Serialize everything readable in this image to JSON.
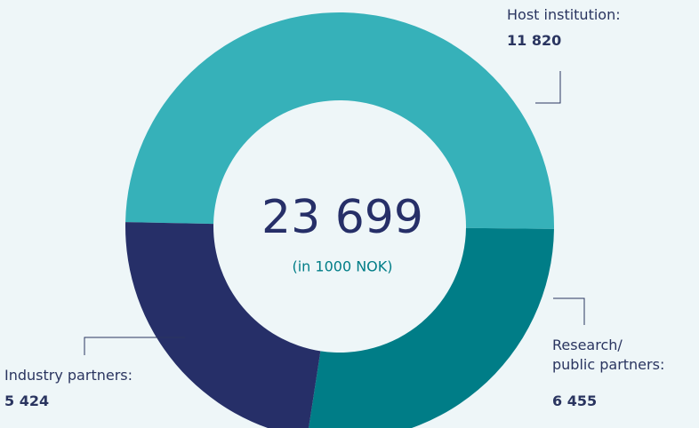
{
  "chart_data": {
    "type": "donut",
    "categories": [
      "Host institution:",
      "Research/\npublic partners:",
      "Industry partners:"
    ],
    "values": [
      11820,
      6455,
      5424
    ],
    "value_labels": [
      "11 820",
      "6 455",
      "5 424"
    ],
    "colors": [
      "#36b1b9",
      "#007d87",
      "#262f68"
    ],
    "center_label": "23 699",
    "center_note": "(in 1000 NOK)"
  }
}
